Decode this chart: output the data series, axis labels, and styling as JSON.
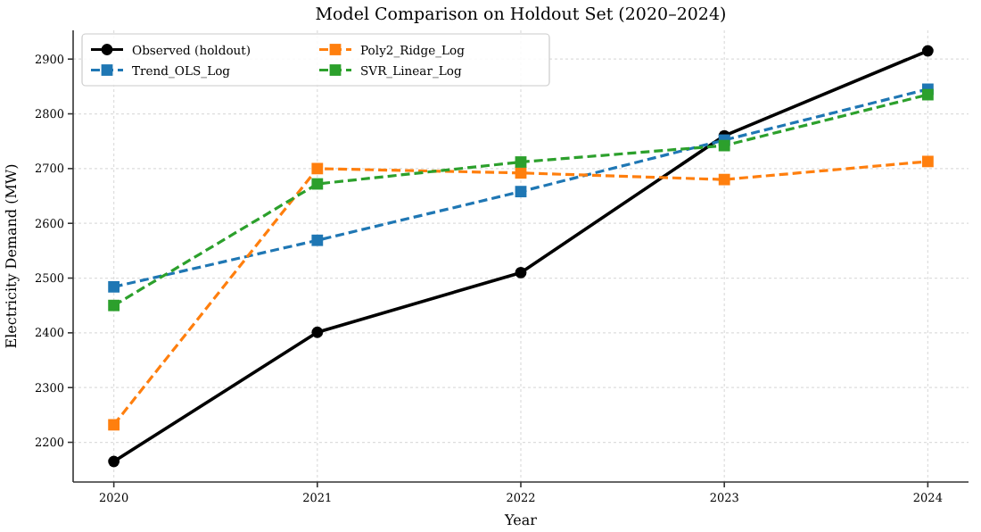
{
  "chart_data": {
    "type": "line",
    "title": "Model Comparison on Holdout Set (2020–2024)",
    "xlabel": "Year",
    "ylabel": "Electricity Demand (MW)",
    "x": [
      2020,
      2021,
      2022,
      2023,
      2024
    ],
    "xlim": [
      2019.8,
      2024.2
    ],
    "xticks": [
      2020,
      2021,
      2022,
      2023,
      2024
    ],
    "ylim": [
      2127.5,
      2952.5
    ],
    "yticks": [
      2200,
      2300,
      2400,
      2500,
      2600,
      2700,
      2800,
      2900
    ],
    "grid": true,
    "legend": "top left",
    "series": [
      {
        "name": "Observed (holdout)",
        "color": "#000000",
        "values": [
          2165,
          2401,
          2510,
          2760,
          2915
        ],
        "marker": "circle",
        "line_style": "solid"
      },
      {
        "name": "Trend_OLS_Log",
        "color": "#1f77b4",
        "values": [
          2484,
          2569,
          2658,
          2752,
          2845
        ],
        "marker": "square",
        "line_style": "dashed"
      },
      {
        "name": "Poly2_Ridge_Log",
        "color": "#ff7f0e",
        "values": [
          2232,
          2700,
          2692,
          2680,
          2713
        ],
        "marker": "square",
        "line_style": "dashed"
      },
      {
        "name": "SVR_Linear_Log",
        "color": "#2ca02c",
        "values": [
          2450,
          2672,
          2712,
          2742,
          2835
        ],
        "marker": "square",
        "line_style": "dashed"
      }
    ]
  }
}
